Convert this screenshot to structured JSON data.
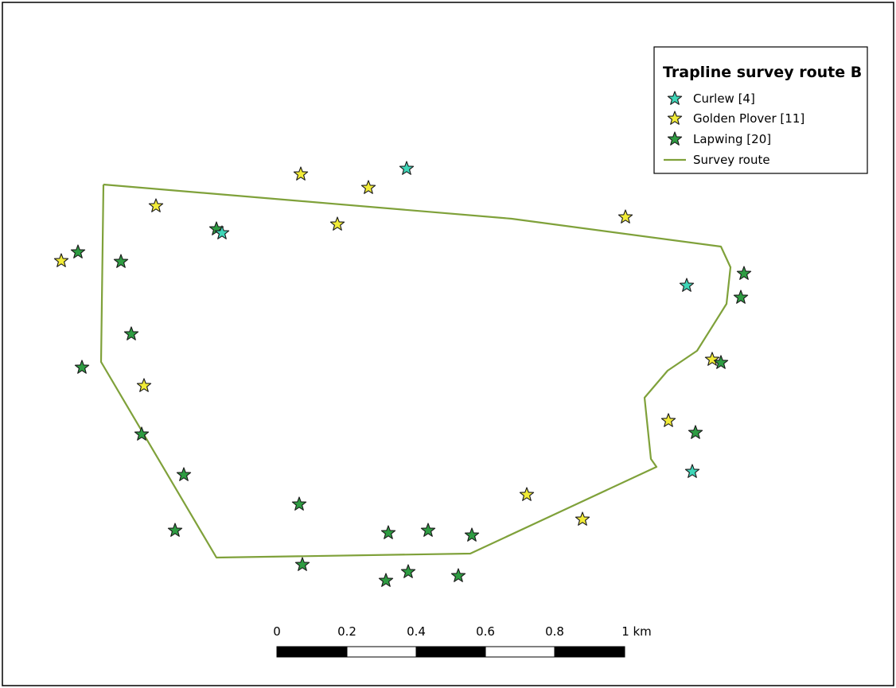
{
  "legend": {
    "title": "Trapline survey route B",
    "items": [
      {
        "label": "Curlew [4]",
        "color": "#3fd6b8",
        "kind": "star"
      },
      {
        "label": "Golden Plover [11]",
        "color": "#f2ec38",
        "kind": "star"
      },
      {
        "label": "Lapwing [20]",
        "color": "#2e9c42",
        "kind": "star"
      },
      {
        "label": "Survey route",
        "color": "#7fa13a",
        "kind": "line"
      }
    ]
  },
  "scale_bar": {
    "labels": [
      "0",
      "0.2",
      "0.4",
      "0.6",
      "0.8",
      "1 km"
    ],
    "unit": "km"
  },
  "colors": {
    "curlew": "#3fd6b8",
    "golden_plover": "#f2ec38",
    "lapwing": "#2e9c42",
    "route": "#7fa13a"
  }
}
